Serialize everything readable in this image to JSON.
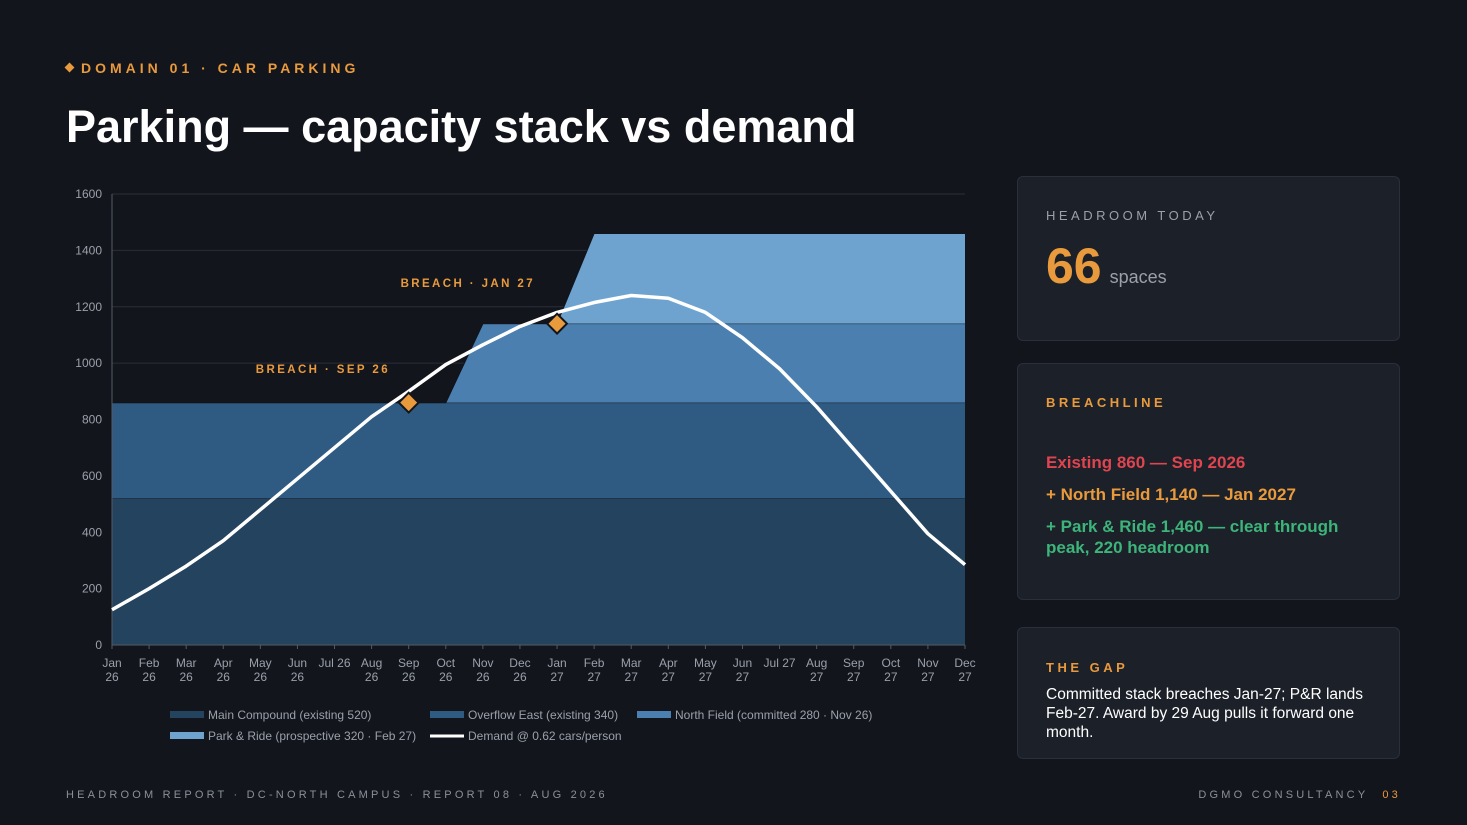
{
  "header": {
    "eyebrow": "DOMAIN 01 · CAR PARKING",
    "title": "Parking — capacity stack vs demand"
  },
  "annotations": {
    "breach_1": "BREACH · SEP 26",
    "breach_2": "BREACH · JAN 27"
  },
  "chart_data": {
    "type": "area",
    "x": [
      "Jan 26",
      "Feb 26",
      "Mar 26",
      "Apr 26",
      "May 26",
      "Jun 26",
      "Jul 26",
      "Aug 26",
      "Sep 26",
      "Oct 26",
      "Nov 26",
      "Dec 26",
      "Jan 27",
      "Feb 27",
      "Mar 27",
      "Apr 27",
      "May 27",
      "Jun 27",
      "Jul 27",
      "Aug 27",
      "Sep 27",
      "Oct 27",
      "Nov 27",
      "Dec 27"
    ],
    "ylim": [
      0,
      1600
    ],
    "yticks": [
      0,
      200,
      400,
      600,
      800,
      1000,
      1200,
      1400,
      1600
    ],
    "stacked": true,
    "series": [
      {
        "name": "Main Compound (existing 520)",
        "kind": "area",
        "color": "#24435e",
        "values": [
          520,
          520,
          520,
          520,
          520,
          520,
          520,
          520,
          520,
          520,
          520,
          520,
          520,
          520,
          520,
          520,
          520,
          520,
          520,
          520,
          520,
          520,
          520,
          520
        ]
      },
      {
        "name": "Overflow East (existing 340)",
        "kind": "area",
        "color": "#2f5b83",
        "values": [
          340,
          340,
          340,
          340,
          340,
          340,
          340,
          340,
          340,
          340,
          340,
          340,
          340,
          340,
          340,
          340,
          340,
          340,
          340,
          340,
          340,
          340,
          340,
          340
        ]
      },
      {
        "name": "North Field (committed 280 · Nov 26)",
        "kind": "area",
        "color": "#4a7fb0",
        "values": [
          0,
          0,
          0,
          0,
          0,
          0,
          0,
          0,
          0,
          0,
          280,
          280,
          280,
          280,
          280,
          280,
          280,
          280,
          280,
          280,
          280,
          280,
          280,
          280
        ]
      },
      {
        "name": "Park & Ride (prospective 320 · Feb 27)",
        "kind": "area",
        "color": "#6ea3d0",
        "values": [
          0,
          0,
          0,
          0,
          0,
          0,
          0,
          0,
          0,
          0,
          0,
          0,
          0,
          320,
          320,
          320,
          320,
          320,
          320,
          320,
          320,
          320,
          320,
          320
        ]
      },
      {
        "name": "Demand @ 0.62 cars/person",
        "kind": "line",
        "color": "#ffffff",
        "values": [
          125,
          200,
          280,
          370,
          480,
          590,
          700,
          810,
          900,
          995,
          1065,
          1130,
          1180,
          1215,
          1240,
          1230,
          1180,
          1090,
          980,
          845,
          695,
          545,
          395,
          285
        ]
      }
    ],
    "breach_points": [
      {
        "x": "Sep 26",
        "y": 860
      },
      {
        "x": "Jan 27",
        "y": 1140
      }
    ]
  },
  "cards": {
    "headroom": {
      "label": "HEADROOM TODAY",
      "value": "66",
      "unit": "spaces"
    },
    "breachline": {
      "label": "BREACHLINE",
      "lines": [
        {
          "text": "Existing 860 — Sep 2026",
          "color": "#e0444e"
        },
        {
          "text": "+ North Field 1,140 — Jan 2027",
          "color": "#e99a3c"
        },
        {
          "text": "+ Park & Ride 1,460 — clear through peak, 220 headroom",
          "color": "#3db47a"
        }
      ]
    },
    "gap": {
      "label": "THE GAP",
      "text": "Committed stack breaches Jan-27; P&R lands Feb-27. Award by 29 Aug pulls it forward one month."
    }
  },
  "footer": {
    "left": "HEADROOM REPORT · DC-NORTH CAMPUS · REPORT 08 · AUG 2026",
    "brand": "DGMO CONSULTANCY",
    "page": "03"
  }
}
